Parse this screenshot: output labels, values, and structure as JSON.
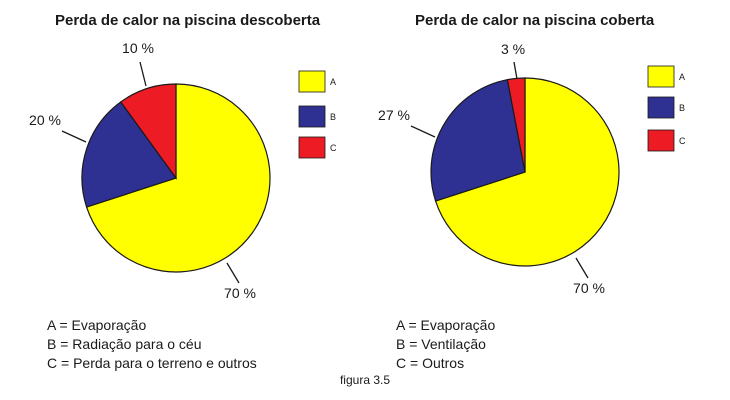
{
  "chart_data": [
    {
      "type": "pie",
      "title": "Perda de calor na piscina descoberta",
      "categories": [
        "A",
        "B",
        "C"
      ],
      "values": [
        70,
        20,
        10
      ],
      "labels": [
        "70 %",
        "20 %",
        "10 %"
      ],
      "colors": [
        "#ffff00",
        "#2e3192",
        "#ed1c24"
      ],
      "legend": "right",
      "descriptions": [
        "A = Evaporação",
        "B = Radiação para o céu",
        "C = Perda para o terreno e outros"
      ]
    },
    {
      "type": "pie",
      "title": "Perda de calor na piscina coberta",
      "categories": [
        "A",
        "B",
        "C"
      ],
      "values": [
        70,
        27,
        3
      ],
      "labels": [
        "70 %",
        "27 %",
        "3 %"
      ],
      "colors": [
        "#ffff00",
        "#2e3192",
        "#ed1c24"
      ],
      "legend": "right",
      "descriptions": [
        "A = Evaporação",
        "B = Ventilação",
        "C = Outros"
      ]
    }
  ],
  "caption": "figura 3.5"
}
